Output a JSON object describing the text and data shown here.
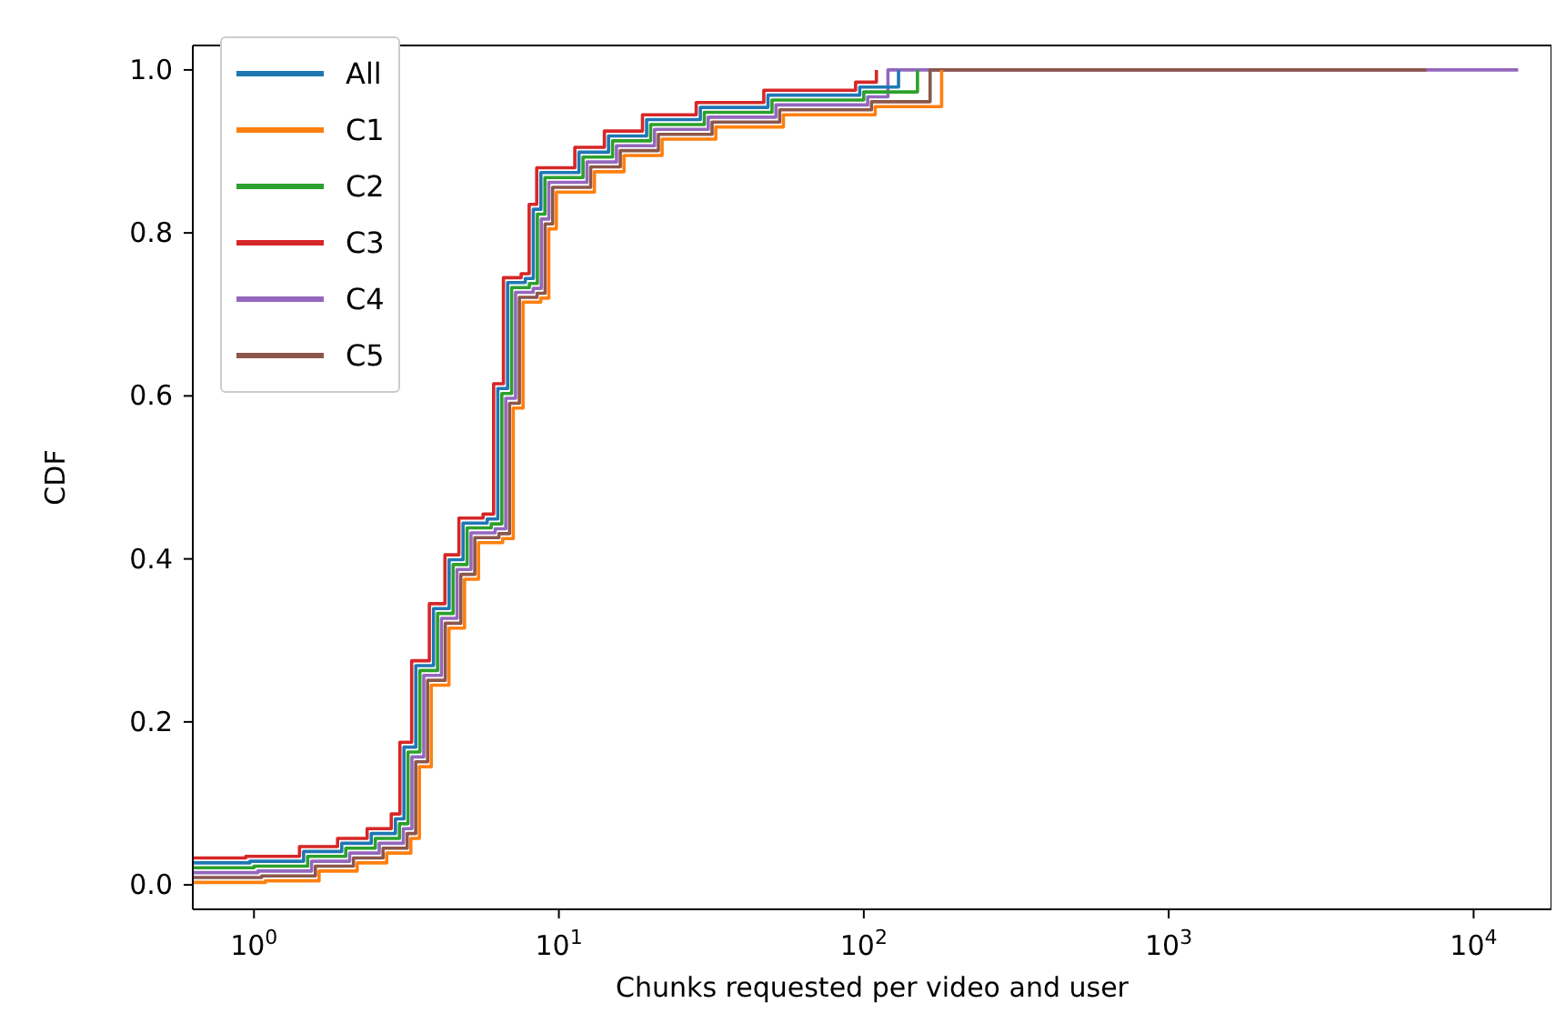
{
  "chart_data": {
    "type": "step",
    "xlabel": "Chunks requested per video and user",
    "ylabel": "CDF",
    "log": "x",
    "xlim": [
      0.63,
      18000
    ],
    "ylim": [
      -0.03,
      1.03
    ],
    "xticks": [
      {
        "value": 1,
        "label": "10$^{0}$"
      },
      {
        "value": 10,
        "label": "10$^{1}$"
      },
      {
        "value": 100,
        "label": "10$^{2}$"
      },
      {
        "value": 1000,
        "label": "10$^{3}$"
      },
      {
        "value": 10000,
        "label": "10$^{4}$"
      }
    ],
    "yticks": [
      {
        "value": 0,
        "label": "0.0"
      },
      {
        "value": 0.2,
        "label": "0.2"
      },
      {
        "value": 0.4,
        "label": "0.4"
      },
      {
        "value": 0.6,
        "label": "0.6"
      },
      {
        "value": 0.8,
        "label": "0.8"
      },
      {
        "value": 1,
        "label": "1.0"
      }
    ],
    "legend": "top left",
    "marker": "none",
    "line_style": "solid",
    "series": [
      {
        "name": "All",
        "color": "#1f77b4",
        "x": [
          0.63,
          0.97,
          1.455,
          1.94,
          2.425,
          2.91,
          3.104,
          3.395,
          3.88,
          4.365,
          4.85,
          5.82,
          6.305,
          6.79,
          7.76,
          8.245,
          8.73,
          11.64,
          14.55,
          19.4,
          29.1,
          48.5,
          97,
          130
        ],
        "values": [
          0.027,
          0.029,
          0.041,
          0.051,
          0.063,
          0.081,
          0.169,
          0.269,
          0.339,
          0.399,
          0.444,
          0.449,
          0.609,
          0.739,
          0.744,
          0.829,
          0.874,
          0.899,
          0.919,
          0.939,
          0.954,
          0.969,
          0.979,
          1.0
        ]
      },
      {
        "name": "C1",
        "color": "#ff7f0e",
        "x": [
          0.63,
          1.09,
          1.635,
          2.18,
          2.725,
          3.27,
          3.488,
          3.815,
          4.36,
          4.905,
          5.45,
          6.54,
          7.085,
          7.63,
          8.72,
          9.265,
          9.81,
          13.08,
          16.35,
          21.8,
          32.7,
          54.5,
          109,
          180
        ],
        "values": [
          0.003,
          0.005,
          0.017,
          0.027,
          0.039,
          0.057,
          0.145,
          0.245,
          0.315,
          0.375,
          0.42,
          0.425,
          0.585,
          0.715,
          0.72,
          0.805,
          0.85,
          0.875,
          0.895,
          0.915,
          0.93,
          0.945,
          0.955,
          1.0
        ]
      },
      {
        "name": "C2",
        "color": "#2ca02c",
        "x": [
          0.63,
          1,
          1.5,
          2,
          2.5,
          3,
          3.2,
          3.5,
          4,
          4.5,
          5,
          6,
          6.5,
          7,
          8,
          8.5,
          9,
          12,
          15,
          20,
          30,
          50,
          100,
          150
        ],
        "values": [
          0.021,
          0.023,
          0.035,
          0.045,
          0.057,
          0.075,
          0.163,
          0.263,
          0.333,
          0.393,
          0.438,
          0.443,
          0.603,
          0.733,
          0.738,
          0.823,
          0.868,
          0.893,
          0.913,
          0.933,
          0.948,
          0.963,
          0.973,
          1.0
        ]
      },
      {
        "name": "C3",
        "color": "#d62728",
        "x": [
          0.63,
          0.94,
          1.41,
          1.88,
          2.35,
          2.82,
          3.01,
          3.29,
          3.76,
          4.23,
          4.7,
          5.64,
          6.11,
          6.58,
          7.52,
          7.99,
          8.46,
          11.28,
          14.1,
          18.8,
          28.2,
          47,
          94,
          110
        ],
        "values": [
          0.033,
          0.035,
          0.047,
          0.057,
          0.069,
          0.087,
          0.175,
          0.275,
          0.345,
          0.405,
          0.45,
          0.455,
          0.615,
          0.745,
          0.75,
          0.835,
          0.88,
          0.905,
          0.925,
          0.945,
          0.96,
          0.975,
          0.985,
          1.0
        ]
      },
      {
        "name": "C4",
        "color": "#9467bd",
        "x": [
          0.63,
          1.03,
          1.545,
          2.06,
          2.575,
          3.09,
          3.296,
          3.605,
          4.12,
          4.635,
          5.15,
          6.18,
          6.695,
          7.21,
          8.24,
          8.755,
          9.27,
          12.36,
          15.45,
          20.6,
          30.9,
          51.5,
          103,
          120,
          14000
        ],
        "values": [
          0.015,
          0.017,
          0.029,
          0.039,
          0.051,
          0.069,
          0.157,
          0.257,
          0.327,
          0.387,
          0.432,
          0.437,
          0.597,
          0.727,
          0.732,
          0.817,
          0.862,
          0.887,
          0.907,
          0.927,
          0.942,
          0.957,
          0.967,
          1.0,
          1.0
        ]
      },
      {
        "name": "C5",
        "color": "#8c564b",
        "x": [
          0.63,
          1.06,
          1.59,
          2.12,
          2.65,
          3.18,
          3.392,
          3.71,
          4.24,
          4.77,
          5.3,
          6.36,
          6.89,
          7.42,
          8.48,
          9.01,
          9.54,
          12.72,
          15.9,
          21.2,
          31.8,
          53,
          106,
          165,
          7000
        ],
        "values": [
          0.009,
          0.011,
          0.023,
          0.033,
          0.045,
          0.063,
          0.151,
          0.251,
          0.321,
          0.381,
          0.426,
          0.431,
          0.591,
          0.721,
          0.726,
          0.811,
          0.856,
          0.881,
          0.901,
          0.921,
          0.936,
          0.951,
          0.961,
          1.0,
          1.0
        ]
      }
    ]
  }
}
